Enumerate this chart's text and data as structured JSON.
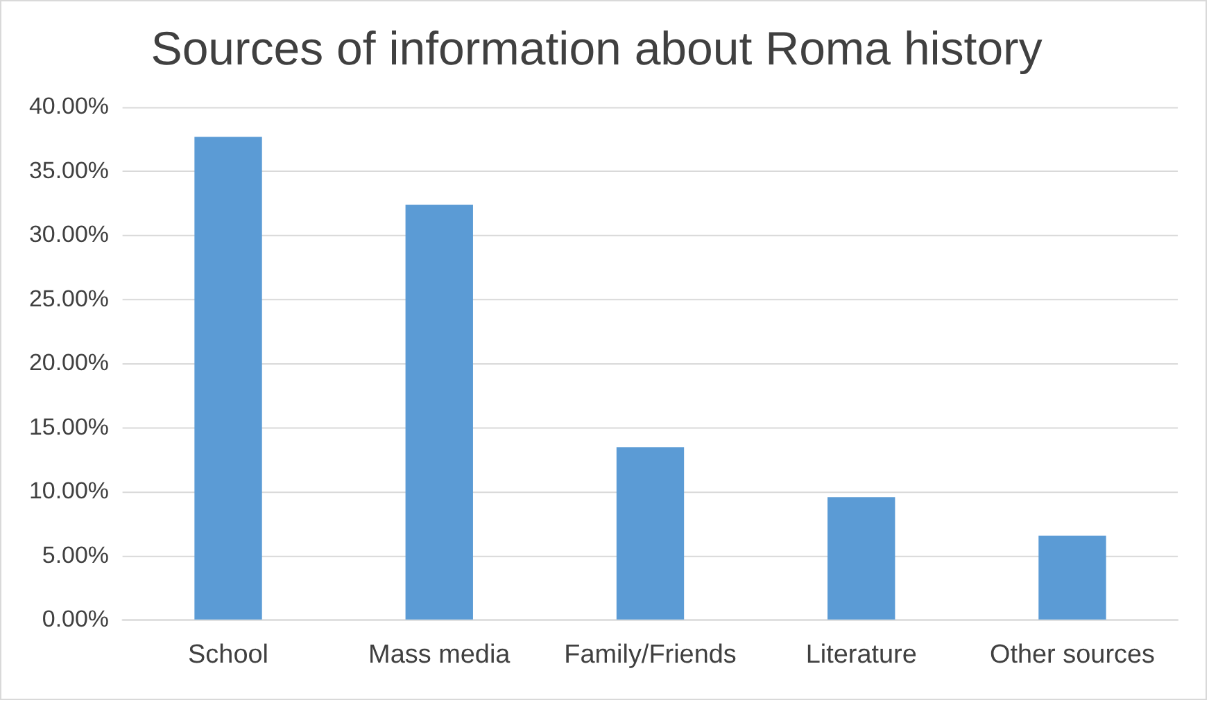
{
  "chart_data": {
    "type": "bar",
    "title": "Sources of information about Roma history",
    "categories": [
      "School",
      "Mass media",
      "Family/Friends",
      "Literature",
      "Other sources"
    ],
    "values": [
      37.7,
      32.4,
      13.5,
      9.6,
      6.6
    ],
    "color": "#5b9bd5",
    "ylim": [
      0,
      40
    ],
    "yticks": [
      {
        "value": 0,
        "label": "0.00%"
      },
      {
        "value": 5,
        "label": "5.00%"
      },
      {
        "value": 10,
        "label": "10.00%"
      },
      {
        "value": 15,
        "label": "15.00%"
      },
      {
        "value": 20,
        "label": "20.00%"
      },
      {
        "value": 25,
        "label": "25.00%"
      },
      {
        "value": 30,
        "label": "30.00%"
      },
      {
        "value": 35,
        "label": "35.00%"
      },
      {
        "value": 40,
        "label": "40.00%"
      }
    ],
    "grid": "y",
    "legend": false
  }
}
